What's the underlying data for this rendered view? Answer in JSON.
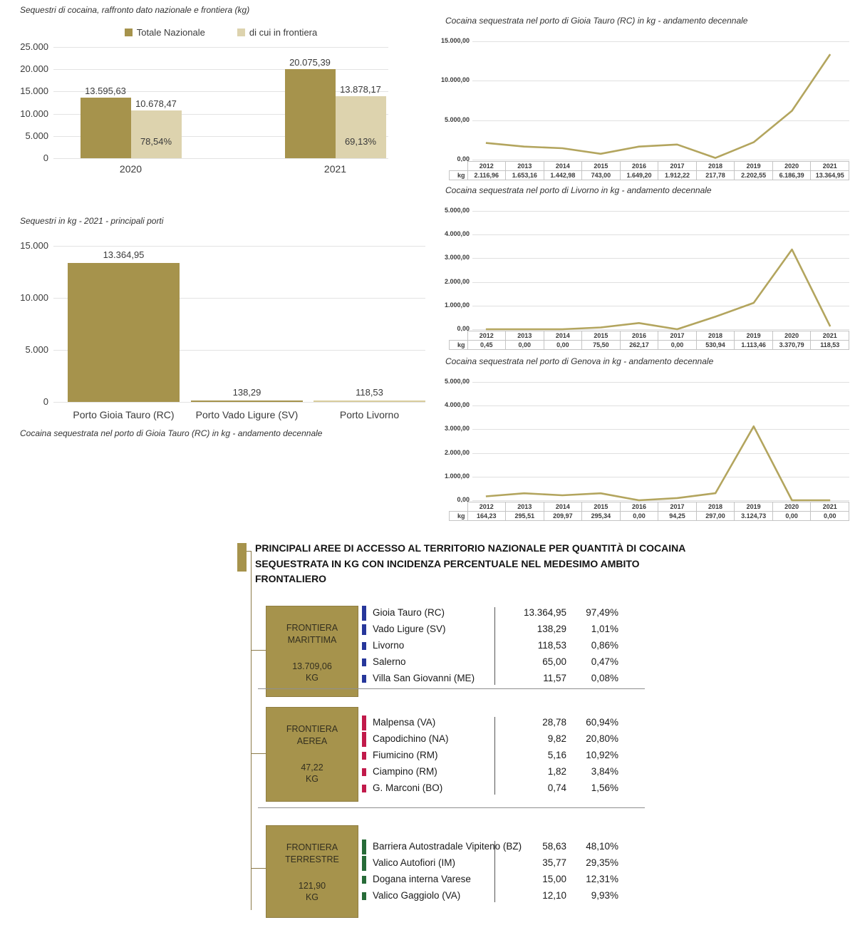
{
  "chart_data": [
    {
      "id": "national",
      "type": "bar",
      "title": "Sequestri di cocaina, raffronto dato nazionale e frontiera (kg)",
      "categories": [
        "2020",
        "2021"
      ],
      "series": [
        {
          "name": "Totale Nazionale",
          "color": "#a6934c",
          "values": [
            13595.63,
            20075.39
          ],
          "labels": [
            "13.595,63",
            "20.075,39"
          ]
        },
        {
          "name": "di cui in frontiera",
          "color": "#ddd3ae",
          "values": [
            10678.47,
            13878.17
          ],
          "labels": [
            "10.678,47",
            "13.878,17"
          ],
          "inner_labels": [
            "78,54%",
            "69,13%"
          ]
        }
      ],
      "yticks": [
        "25.000",
        "20.000",
        "15.000",
        "10.000",
        "5.000",
        "0"
      ],
      "ymax": 25000,
      "legend_position": "top",
      "grid": true
    },
    {
      "id": "ports2021",
      "type": "bar",
      "title": "Sequestri in kg - 2021 - principali porti",
      "categories": [
        "Porto Gioia Tauro (RC)",
        "Porto Vado Ligure (SV)",
        "Porto Livorno"
      ],
      "values": [
        13364.95,
        138.29,
        118.53
      ],
      "labels": [
        "13.364,95",
        "138,29",
        "118,53"
      ],
      "bar_colors": [
        "#a6934c",
        "#a6934c",
        "#d8cc9c"
      ],
      "yticks": [
        "15.000",
        "10.000",
        "5.000",
        "0"
      ],
      "ymax": 15000,
      "grid": true,
      "footnote": "Cocaina sequestrata nel porto di Gioia Tauro (RC)  in kg - andamento decennale"
    },
    {
      "id": "gioia-tauro",
      "type": "line",
      "title": "Cocaina sequestrata nel porto di Gioia Tauro (RC)  in kg - andamento decennale",
      "x": [
        "2012",
        "2013",
        "2014",
        "2015",
        "2016",
        "2017",
        "2018",
        "2019",
        "2020",
        "2021"
      ],
      "values": [
        2116.96,
        1653.16,
        1442.98,
        743.0,
        1649.2,
        1912.22,
        217.78,
        2202.55,
        6186.39,
        13364.95
      ],
      "labels": [
        "2.116,96",
        "1.653,16",
        "1.442,98",
        "743,00",
        "1.649,20",
        "1.912,22",
        "217,78",
        "2.202,55",
        "6.186,39",
        "13.364,95"
      ],
      "row_header": "kg",
      "yticks": [
        "15.000,00",
        "10.000,00",
        "5.000,00",
        "0,00"
      ],
      "ymax": 15000,
      "line_color": "#b3a55e",
      "grid": true
    },
    {
      "id": "livorno",
      "type": "line",
      "title": "Cocaina sequestrata nel porto di Livorno  in kg - andamento decennale",
      "x": [
        "2012",
        "2013",
        "2014",
        "2015",
        "2016",
        "2017",
        "2018",
        "2019",
        "2020",
        "2021"
      ],
      "values": [
        0.45,
        0.0,
        0.0,
        75.5,
        262.17,
        0.0,
        530.94,
        1113.46,
        3370.79,
        118.53
      ],
      "labels": [
        "0,45",
        "0,00",
        "0,00",
        "75,50",
        "262,17",
        "0,00",
        "530,94",
        "1.113,46",
        "3.370,79",
        "118,53"
      ],
      "row_header": "kg",
      "yticks": [
        "5.000,00",
        "4.000,00",
        "3.000,00",
        "2.000,00",
        "1.000,00",
        "0,00"
      ],
      "ymax": 5000,
      "line_color": "#b3a55e",
      "grid": true
    },
    {
      "id": "genova",
      "type": "line",
      "title": "Cocaina sequestrata nel porto di Genova  in kg - andamento decennale",
      "x": [
        "2012",
        "2013",
        "2014",
        "2015",
        "2016",
        "2017",
        "2018",
        "2019",
        "2020",
        "2021"
      ],
      "values": [
        164.23,
        295.51,
        209.97,
        295.34,
        0.0,
        94.25,
        297.0,
        3124.73,
        0.0,
        0.0
      ],
      "labels": [
        "164,23",
        "295,51",
        "209,97",
        "295,34",
        "0,00",
        "94,25",
        "297,00",
        "3.124,73",
        "0,00",
        "0,00"
      ],
      "row_header": "kg",
      "yticks": [
        "5.000,00",
        "4.000,00",
        "3.000,00",
        "2.000,00",
        "1.000,00",
        "0,00"
      ],
      "ymax": 5000,
      "line_color": "#b3a55e",
      "grid": true
    }
  ],
  "bottom": {
    "title_line1": "PRINCIPALI AREE DI ACCESSO AL TERRITORIO NAZIONALE PER QUANTITÀ DI COCAINA",
    "title_line2": "SEQUESTRATA IN KG CON INCIDENZA PERCENTUALE NEL MEDESIMO AMBITO FRONTALIERO",
    "groups": [
      {
        "name_lines": [
          "FRONTIERA",
          "MARITTIMA"
        ],
        "total": "13.709,06",
        "unit": "KG",
        "tick_color": "#27379b",
        "rows": [
          {
            "label": "Gioia Tauro (RC)",
            "value": "13.364,95",
            "pct": "97,49%",
            "tick": "tall"
          },
          {
            "label": "Vado Ligure (SV)",
            "value": "138,29",
            "pct": "1,01%",
            "tick": "mid"
          },
          {
            "label": "Livorno",
            "value": "118,53",
            "pct": "0,86%",
            "tick": "small"
          },
          {
            "label": "Salerno",
            "value": "65,00",
            "pct": "0,47%",
            "tick": "small"
          },
          {
            "label": "Villa San Giovanni (ME)",
            "value": "11,57",
            "pct": "0,08%",
            "tick": "small"
          }
        ]
      },
      {
        "name_lines": [
          "FRONTIERA",
          "AEREA"
        ],
        "total": "47,22",
        "unit": "KG",
        "tick_color": "#c11a4b",
        "rows": [
          {
            "label": "Malpensa (VA)",
            "value": "28,78",
            "pct": "60,94%",
            "tick": "tall"
          },
          {
            "label": "Capodichino (NA)",
            "value": "9,82",
            "pct": "20,80%",
            "tick": "tall"
          },
          {
            "label": "Fiumicino (RM)",
            "value": "5,16",
            "pct": "10,92%",
            "tick": "small"
          },
          {
            "label": "Ciampino (RM)",
            "value": "1,82",
            "pct": "3,84%",
            "tick": "small"
          },
          {
            "label": "G. Marconi (BO)",
            "value": "0,74",
            "pct": "1,56%",
            "tick": "small"
          }
        ]
      },
      {
        "name_lines": [
          "FRONTIERA",
          "TERRESTRE"
        ],
        "total": "121,90",
        "unit": "KG",
        "tick_color": "#276b38",
        "rows": [
          {
            "label": "Barriera Autostradale Vipiteno (BZ)",
            "value": "58,63",
            "pct": "48,10%",
            "tick": "tall"
          },
          {
            "label": "Valico Autofiori (IM)",
            "value": "35,77",
            "pct": "29,35%",
            "tick": "tall"
          },
          {
            "label": "Dogana interna Varese",
            "value": "15,00",
            "pct": "12,31%",
            "tick": "small"
          },
          {
            "label": "Valico Gaggiolo (VA)",
            "value": "12,10",
            "pct": "9,93%",
            "tick": "small"
          }
        ]
      }
    ]
  }
}
